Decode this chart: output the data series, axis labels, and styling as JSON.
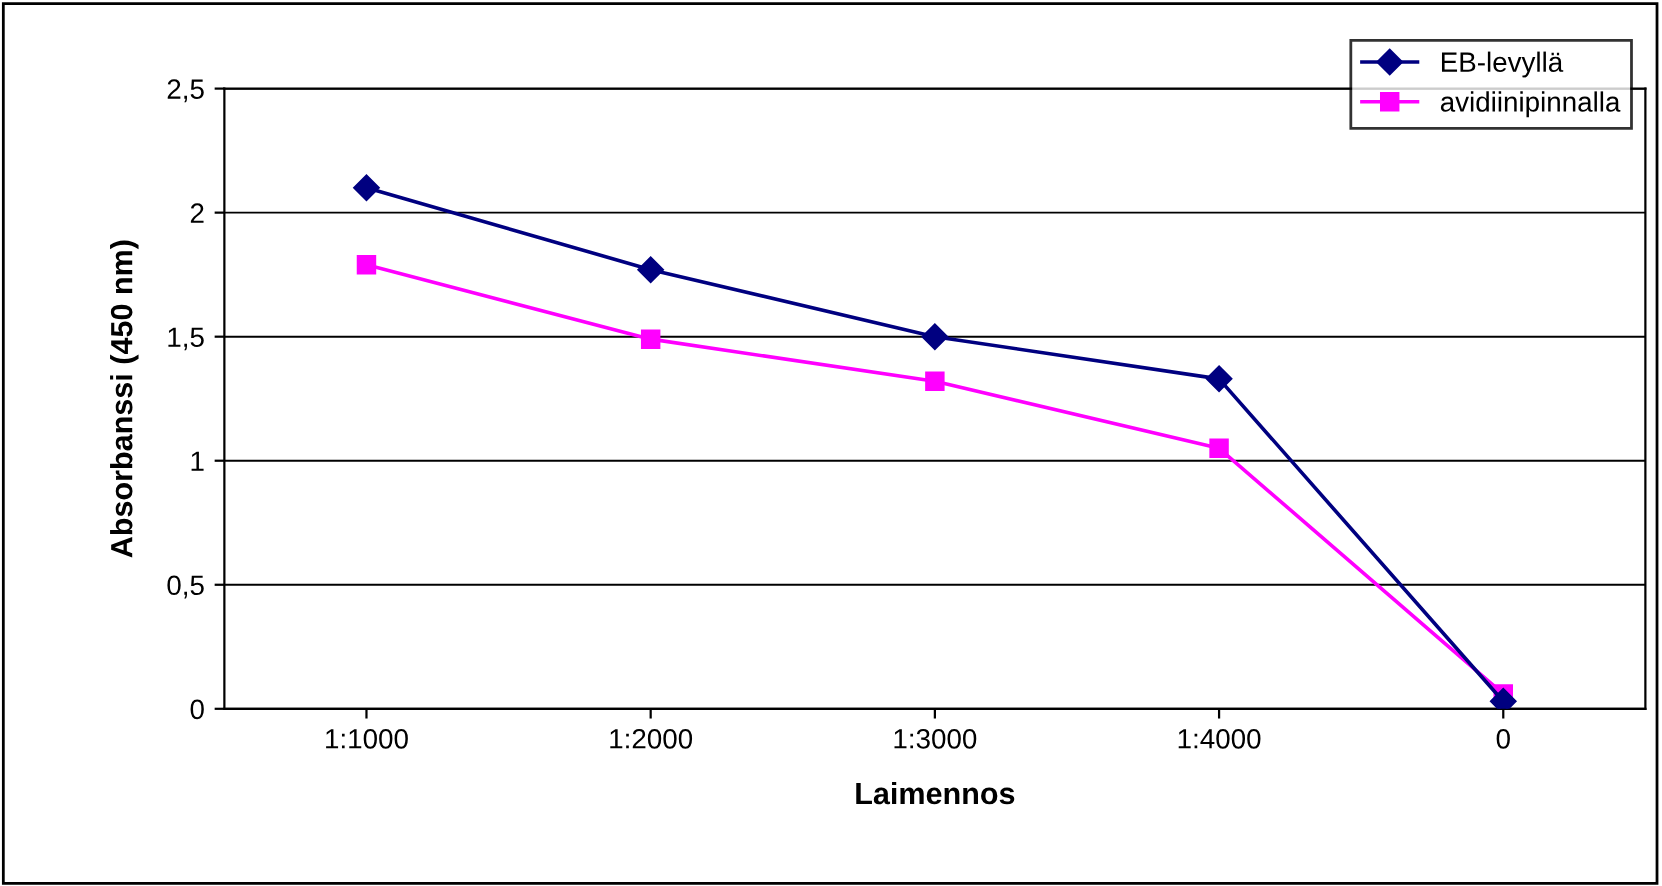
{
  "chart_data": {
    "type": "line",
    "xlabel": "Laimennos",
    "ylabel": "Absorbanssi (450 nm)",
    "categories": [
      "1:1000",
      "1:2000",
      "1:3000",
      "1:4000",
      "0"
    ],
    "series": [
      {
        "name": "EB-levyllä",
        "color": "#000080",
        "marker": "diamond",
        "values": [
          2.1,
          1.77,
          1.5,
          1.33,
          0.03
        ]
      },
      {
        "name": "avidiinipinnalla",
        "color": "#ff00ff",
        "marker": "square",
        "values": [
          1.79,
          1.49,
          1.32,
          1.05,
          0.06
        ]
      }
    ],
    "ylim": [
      0,
      2.5
    ],
    "yticks": [
      0,
      {
        "value": 0.5,
        "label": "0,5"
      },
      1,
      {
        "value": 1.5,
        "label": "1,5"
      },
      2,
      {
        "value": 2.5,
        "label": "2,5"
      }
    ],
    "grid": "y",
    "legend": "top right",
    "line_style": "solid"
  }
}
